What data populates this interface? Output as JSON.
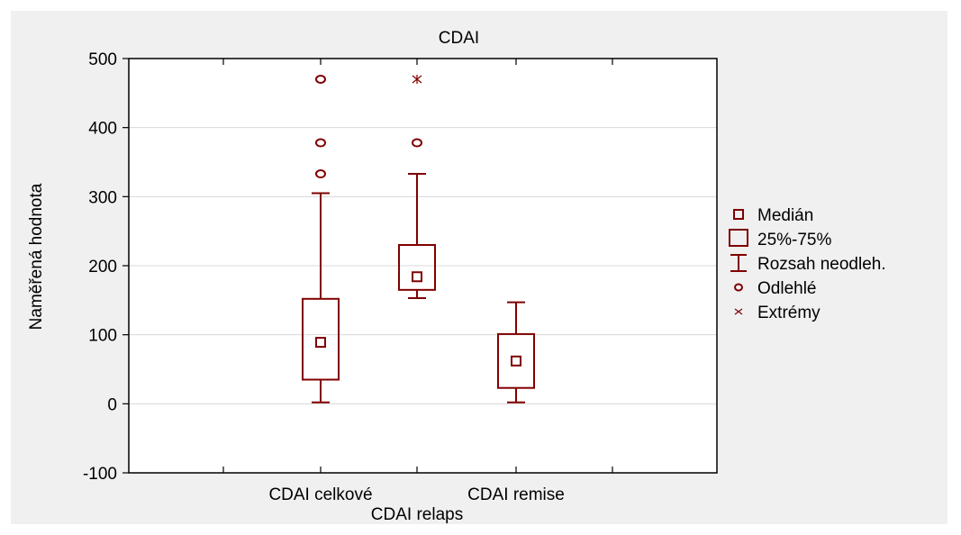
{
  "chart_data": {
    "type": "boxplot",
    "title": "CDAI",
    "ylabel": "Naměřená hodnota",
    "xlabel": "",
    "ylim": [
      -100,
      500
    ],
    "yticks": [
      -100,
      0,
      100,
      200,
      300,
      400,
      500
    ],
    "grid": true,
    "colors": {
      "series": "#800000",
      "background": "#f0f0f0",
      "plot_bg": "#ffffff",
      "grid": "#d8d8d8"
    },
    "category_labels": [
      {
        "text": "CDAI celkové",
        "row": 1
      },
      {
        "text": "CDAI relaps",
        "row": 2
      },
      {
        "text": "CDAI remise",
        "row": 1
      }
    ],
    "boxes": [
      {
        "category": "CDAI celkové",
        "median": 89,
        "q1": 35,
        "q3": 152,
        "whisker_low": 2,
        "whisker_high": 305,
        "outliers": [
          333,
          378,
          470
        ],
        "extremes": []
      },
      {
        "category": "CDAI relaps",
        "median": 184,
        "q1": 165,
        "q3": 230,
        "whisker_low": 153,
        "whisker_high": 333,
        "outliers": [
          378
        ],
        "extremes": [
          470
        ]
      },
      {
        "category": "CDAI remise",
        "median": 62,
        "q1": 23,
        "q3": 101,
        "whisker_low": 2,
        "whisker_high": 147,
        "outliers": [],
        "extremes": []
      }
    ],
    "legend": {
      "position": "right",
      "entries": [
        {
          "label": "Medián",
          "symbol": "small-square"
        },
        {
          "label": "25%-75%",
          "symbol": "box"
        },
        {
          "label": "Rozsah neodleh.",
          "symbol": "whisker"
        },
        {
          "label": "Odlehlé",
          "symbol": "circle"
        },
        {
          "label": "Extrémy",
          "symbol": "star"
        }
      ]
    }
  }
}
